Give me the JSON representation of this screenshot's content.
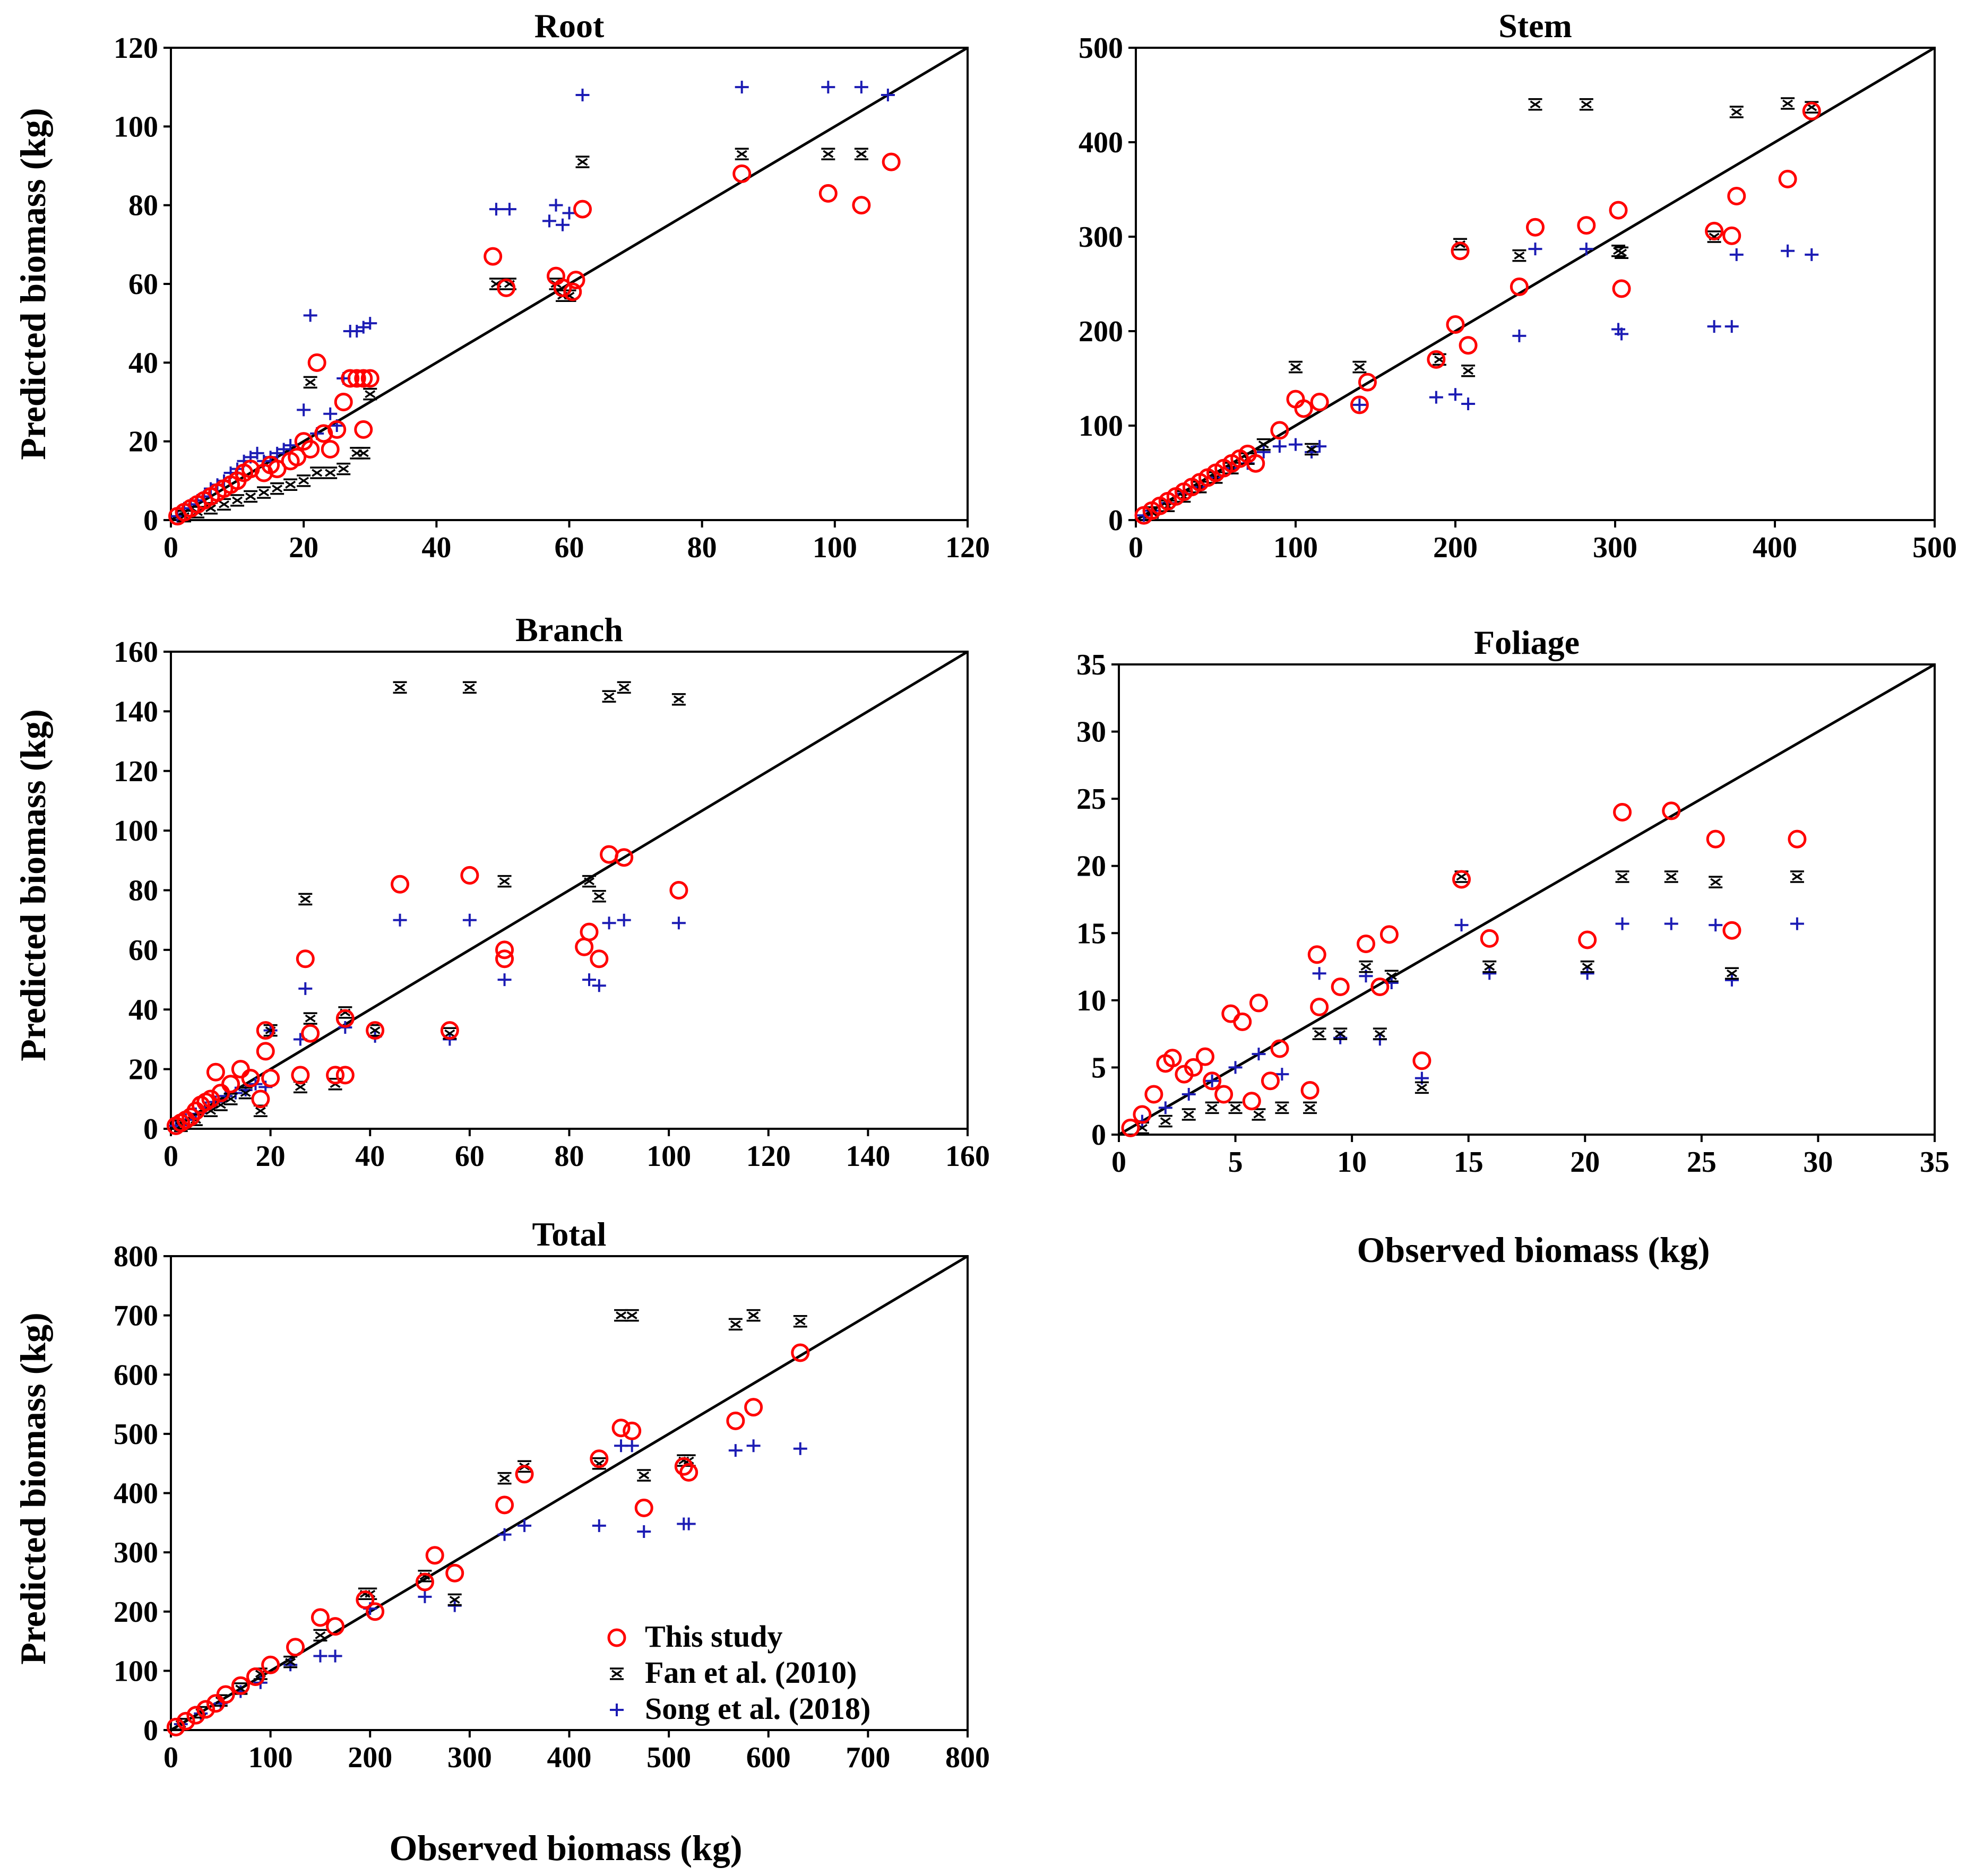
{
  "figure": {
    "legend": {
      "entries": [
        "This study",
        "Fan et al. (2010)",
        "Song et al. (2018)"
      ]
    },
    "x_axis_title": "Observed biomass (kg)",
    "y_axis_title": "Predicted biomass (kg)"
  },
  "colors": {
    "this_study": "#ff0000",
    "fan": "#000000",
    "song": "#1c1cb4",
    "line": "#000000"
  },
  "chart_data": [
    {
      "type": "scatter",
      "title": "Root",
      "xlabel": "",
      "ylabel": "Predicted biomass (kg)",
      "xlim": [
        0,
        120
      ],
      "ylim": [
        0,
        120
      ],
      "xticks": [
        0,
        20,
        40,
        60,
        80,
        100,
        120
      ],
      "yticks": [
        0,
        20,
        40,
        60,
        80,
        100,
        120
      ],
      "reference_line": "1:1",
      "series": [
        {
          "name": "This study",
          "x": [
            1,
            2,
            3,
            4,
            5,
            6,
            7,
            8,
            9,
            10,
            11,
            12,
            14,
            15,
            16,
            18,
            19,
            20,
            21,
            22,
            23,
            24,
            25,
            26,
            27,
            28,
            29,
            30,
            29,
            48.5,
            50.5,
            58,
            59,
            60.5,
            61,
            62,
            86,
            99,
            104,
            108.5
          ],
          "y": [
            1,
            2,
            3,
            4,
            5,
            6,
            7,
            8,
            9,
            10,
            12,
            13,
            12,
            14,
            13,
            15,
            16,
            20,
            18,
            40,
            22,
            18,
            23,
            30,
            36,
            36,
            36,
            36,
            23,
            67,
            59,
            62,
            59,
            58,
            61,
            79,
            88,
            83,
            80,
            91
          ]
        },
        {
          "name": "Fan et al. (2010)",
          "x": [
            2,
            4,
            6,
            8,
            10,
            12,
            14,
            16,
            18,
            20,
            22,
            24,
            26,
            28,
            29,
            30,
            21,
            49,
            51,
            58,
            59,
            60,
            62,
            86,
            99,
            104
          ],
          "y": [
            1,
            2,
            3,
            4,
            5,
            6,
            7,
            8,
            9,
            10,
            12,
            12,
            13,
            17,
            17,
            32,
            35,
            60,
            60,
            60,
            57,
            57,
            91,
            93,
            93,
            93
          ]
        },
        {
          "name": "Song et al. (2018)",
          "x": [
            1,
            2,
            3,
            4,
            5,
            6,
            7,
            8,
            9,
            10,
            11,
            12,
            13,
            14,
            15,
            16,
            17,
            18,
            20,
            22,
            24,
            25,
            26,
            27,
            28,
            29,
            30,
            21,
            49,
            51,
            57,
            58,
            59,
            60,
            62,
            86,
            99,
            104,
            108
          ],
          "y": [
            1,
            3,
            4,
            5,
            6,
            8,
            9,
            10,
            12,
            13,
            15,
            16,
            17,
            15,
            16,
            17,
            18,
            19,
            28,
            22,
            27,
            24,
            36,
            48,
            48,
            49,
            50,
            52,
            79,
            79,
            76,
            80,
            75,
            78,
            108,
            110,
            110,
            110,
            108
          ]
        }
      ]
    },
    {
      "type": "scatter",
      "title": "Stem",
      "xlabel": "",
      "ylabel": "",
      "xlim": [
        0,
        500
      ],
      "ylim": [
        0,
        500
      ],
      "xticks": [
        0,
        100,
        200,
        300,
        400,
        500
      ],
      "yticks": [
        0,
        100,
        200,
        300,
        400,
        500
      ],
      "reference_line": "1:1",
      "series": [
        {
          "name": "This study",
          "x": [
            5,
            10,
            15,
            20,
            25,
            30,
            35,
            40,
            45,
            50,
            55,
            60,
            65,
            70,
            75,
            90,
            100,
            105,
            115,
            140,
            145,
            188,
            200,
            203,
            208,
            240,
            250,
            282,
            302,
            304,
            362,
            373,
            376,
            408,
            423
          ],
          "y": [
            5,
            10,
            15,
            20,
            25,
            30,
            35,
            40,
            45,
            50,
            55,
            60,
            65,
            70,
            60,
            95,
            128,
            118,
            125,
            122,
            146,
            170,
            207,
            285,
            185,
            247,
            310,
            312,
            328,
            245,
            306,
            301,
            343,
            361,
            433
          ]
        },
        {
          "name": "Fan et al. (2010)",
          "x": [
            10,
            20,
            30,
            40,
            50,
            60,
            70,
            80,
            100,
            110,
            140,
            190,
            203,
            208,
            240,
            250,
            282,
            302,
            304,
            362,
            376,
            408,
            423
          ],
          "y": [
            8,
            15,
            25,
            35,
            45,
            55,
            65,
            80,
            162,
            75,
            162,
            170,
            292,
            158,
            280,
            440,
            440,
            285,
            283,
            300,
            432,
            441,
            437
          ]
        },
        {
          "name": "Song et al. (2018)",
          "x": [
            5,
            10,
            20,
            30,
            40,
            50,
            60,
            70,
            80,
            90,
            100,
            110,
            115,
            140,
            188,
            200,
            208,
            240,
            250,
            282,
            302,
            304,
            362,
            373,
            376,
            408,
            423
          ],
          "y": [
            5,
            10,
            18,
            28,
            35,
            45,
            55,
            60,
            72,
            78,
            80,
            72,
            78,
            122,
            130,
            133,
            123,
            195,
            287,
            287,
            202,
            197,
            205,
            205,
            281,
            285,
            281
          ]
        }
      ]
    },
    {
      "type": "scatter",
      "title": "Branch",
      "xlabel": "",
      "ylabel": "Predicted biomass (kg)",
      "xlim": [
        0,
        160
      ],
      "ylim": [
        0,
        160
      ],
      "xticks": [
        0,
        20,
        40,
        60,
        80,
        100,
        120,
        140,
        160
      ],
      "yticks": [
        0,
        20,
        40,
        60,
        80,
        100,
        120,
        140,
        160
      ],
      "reference_line": "1:1",
      "series": [
        {
          "name": "This study",
          "x": [
            1,
            2,
            3,
            4,
            5,
            6,
            7,
            8,
            9,
            10,
            12,
            14,
            16,
            18,
            19,
            20,
            19,
            26,
            27,
            28,
            33,
            35,
            35,
            41,
            46,
            56,
            60,
            67,
            67,
            83,
            84,
            86,
            88,
            91,
            102
          ],
          "y": [
            1,
            2,
            3,
            4,
            6,
            8,
            9,
            10,
            19,
            12,
            15,
            20,
            17,
            10,
            26,
            17,
            33,
            18,
            57,
            32,
            18,
            18,
            37,
            33,
            82,
            33,
            85,
            60,
            57,
            61,
            66,
            57,
            92,
            91,
            80
          ]
        },
        {
          "name": "Fan et al. (2010)",
          "x": [
            2,
            5,
            8,
            10,
            12,
            15,
            18,
            20,
            26,
            27,
            28,
            33,
            35,
            41,
            46,
            56,
            60,
            67,
            84,
            86,
            88,
            91,
            102
          ],
          "y": [
            1,
            3,
            6,
            8,
            10,
            12,
            6,
            33,
            14,
            77,
            37,
            15,
            39,
            33,
            148,
            32,
            148,
            83,
            83,
            78,
            145,
            148,
            144
          ]
        },
        {
          "name": "Song et al. (2018)",
          "x": [
            1,
            3,
            5,
            7,
            9,
            11,
            13,
            15,
            17,
            19,
            20,
            26,
            27,
            35,
            41,
            46,
            56,
            60,
            67,
            84,
            86,
            88,
            91,
            102
          ],
          "y": [
            1,
            3,
            5,
            7,
            9,
            11,
            12,
            13,
            15,
            14,
            33,
            30,
            47,
            34,
            31,
            70,
            30,
            70,
            50,
            50,
            48,
            69,
            70,
            69
          ]
        }
      ]
    },
    {
      "type": "scatter",
      "title": "Foliage",
      "xlabel": "Observed biomass (kg)",
      "ylabel": "",
      "xlim": [
        0,
        35
      ],
      "ylim": [
        0,
        35
      ],
      "xticks": [
        0,
        5,
        10,
        15,
        20,
        25,
        30,
        35
      ],
      "yticks": [
        0,
        5,
        10,
        15,
        20,
        25,
        30,
        35
      ],
      "reference_line": "1:1",
      "series": [
        {
          "name": "This study",
          "x": [
            0.5,
            1,
            1.5,
            2,
            2.3,
            2.8,
            3.2,
            3.7,
            4,
            4.5,
            4.8,
            5.3,
            5.7,
            6,
            6.5,
            6.9,
            8.2,
            8.5,
            8.6,
            9.5,
            10.6,
            11.2,
            11.6,
            13,
            14.7,
            15.9,
            20.1,
            21.6,
            23.7,
            25.6,
            26.3,
            29.1
          ],
          "y": [
            0.5,
            1.5,
            3,
            5.3,
            5.7,
            4.5,
            5,
            5.8,
            4,
            3,
            9,
            8.4,
            2.5,
            9.8,
            4,
            6.4,
            3.3,
            13.4,
            9.5,
            11,
            14.2,
            11,
            14.9,
            5.5,
            19,
            14.6,
            14.5,
            24,
            24.1,
            22,
            15.2,
            22
          ]
        },
        {
          "name": "Fan et al. (2010)",
          "x": [
            1,
            2,
            3,
            4,
            5,
            6,
            7,
            8.2,
            8.6,
            9.5,
            10.6,
            11.2,
            11.7,
            13,
            14.7,
            15.9,
            20.1,
            21.6,
            23.7,
            25.6,
            26.3,
            29.1
          ],
          "y": [
            0.5,
            1,
            1.5,
            2,
            2,
            1.5,
            2,
            2,
            7.5,
            7.5,
            12.5,
            7.5,
            11.8,
            3.5,
            19.2,
            12.5,
            12.5,
            19.2,
            19.2,
            18.8,
            12,
            19.2
          ]
        },
        {
          "name": "Song et al. (2018)",
          "x": [
            1,
            2,
            3,
            4,
            5,
            6,
            7,
            8.6,
            9.5,
            10.6,
            11.2,
            11.7,
            13,
            14.7,
            15.9,
            20.1,
            21.6,
            23.7,
            25.6,
            26.3,
            29.1
          ],
          "y": [
            1,
            2,
            3,
            4,
            5,
            6,
            4.5,
            12,
            7.2,
            11.8,
            7.1,
            11.3,
            4.2,
            15.6,
            12,
            12,
            15.7,
            15.7,
            15.6,
            11.5,
            15.7
          ]
        }
      ]
    },
    {
      "type": "scatter",
      "title": "Total",
      "xlabel": "Observed biomass (kg)",
      "ylabel": "Predicted biomass (kg)",
      "xlim": [
        0,
        800
      ],
      "ylim": [
        0,
        800
      ],
      "xticks": [
        0,
        100,
        200,
        300,
        400,
        500,
        600,
        700,
        800
      ],
      "yticks": [
        0,
        100,
        200,
        300,
        400,
        500,
        600,
        700,
        800
      ],
      "reference_line": "1:1",
      "series": [
        {
          "name": "This study",
          "x": [
            5,
            15,
            25,
            35,
            45,
            55,
            70,
            85,
            100,
            125,
            150,
            165,
            195,
            205,
            255,
            265,
            285,
            335,
            355,
            430,
            452,
            463,
            475,
            515,
            520,
            567,
            585,
            632
          ],
          "y": [
            5,
            15,
            25,
            35,
            45,
            60,
            75,
            90,
            110,
            140,
            190,
            175,
            220,
            200,
            250,
            295,
            265,
            380,
            432,
            458,
            510,
            505,
            375,
            445,
            435,
            522,
            545,
            637
          ]
        },
        {
          "name": "Fan et al. (2010)",
          "x": [
            10,
            30,
            50,
            70,
            90,
            120,
            150,
            195,
            200,
            255,
            285,
            335,
            355,
            430,
            452,
            463,
            475,
            515,
            520,
            567,
            585,
            632
          ],
          "y": [
            10,
            30,
            50,
            70,
            95,
            115,
            160,
            230,
            230,
            260,
            220,
            425,
            445,
            450,
            700,
            700,
            430,
            455,
            455,
            685,
            700,
            690
          ]
        },
        {
          "name": "Song et al. (2018)",
          "x": [
            10,
            30,
            50,
            70,
            90,
            120,
            150,
            165,
            200,
            255,
            285,
            335,
            355,
            430,
            452,
            463,
            475,
            515,
            520,
            567,
            585,
            632
          ],
          "y": [
            10,
            28,
            45,
            65,
            80,
            110,
            125,
            125,
            205,
            225,
            210,
            330,
            345,
            345,
            480,
            480,
            335,
            348,
            348,
            472,
            480,
            475
          ]
        }
      ]
    }
  ]
}
